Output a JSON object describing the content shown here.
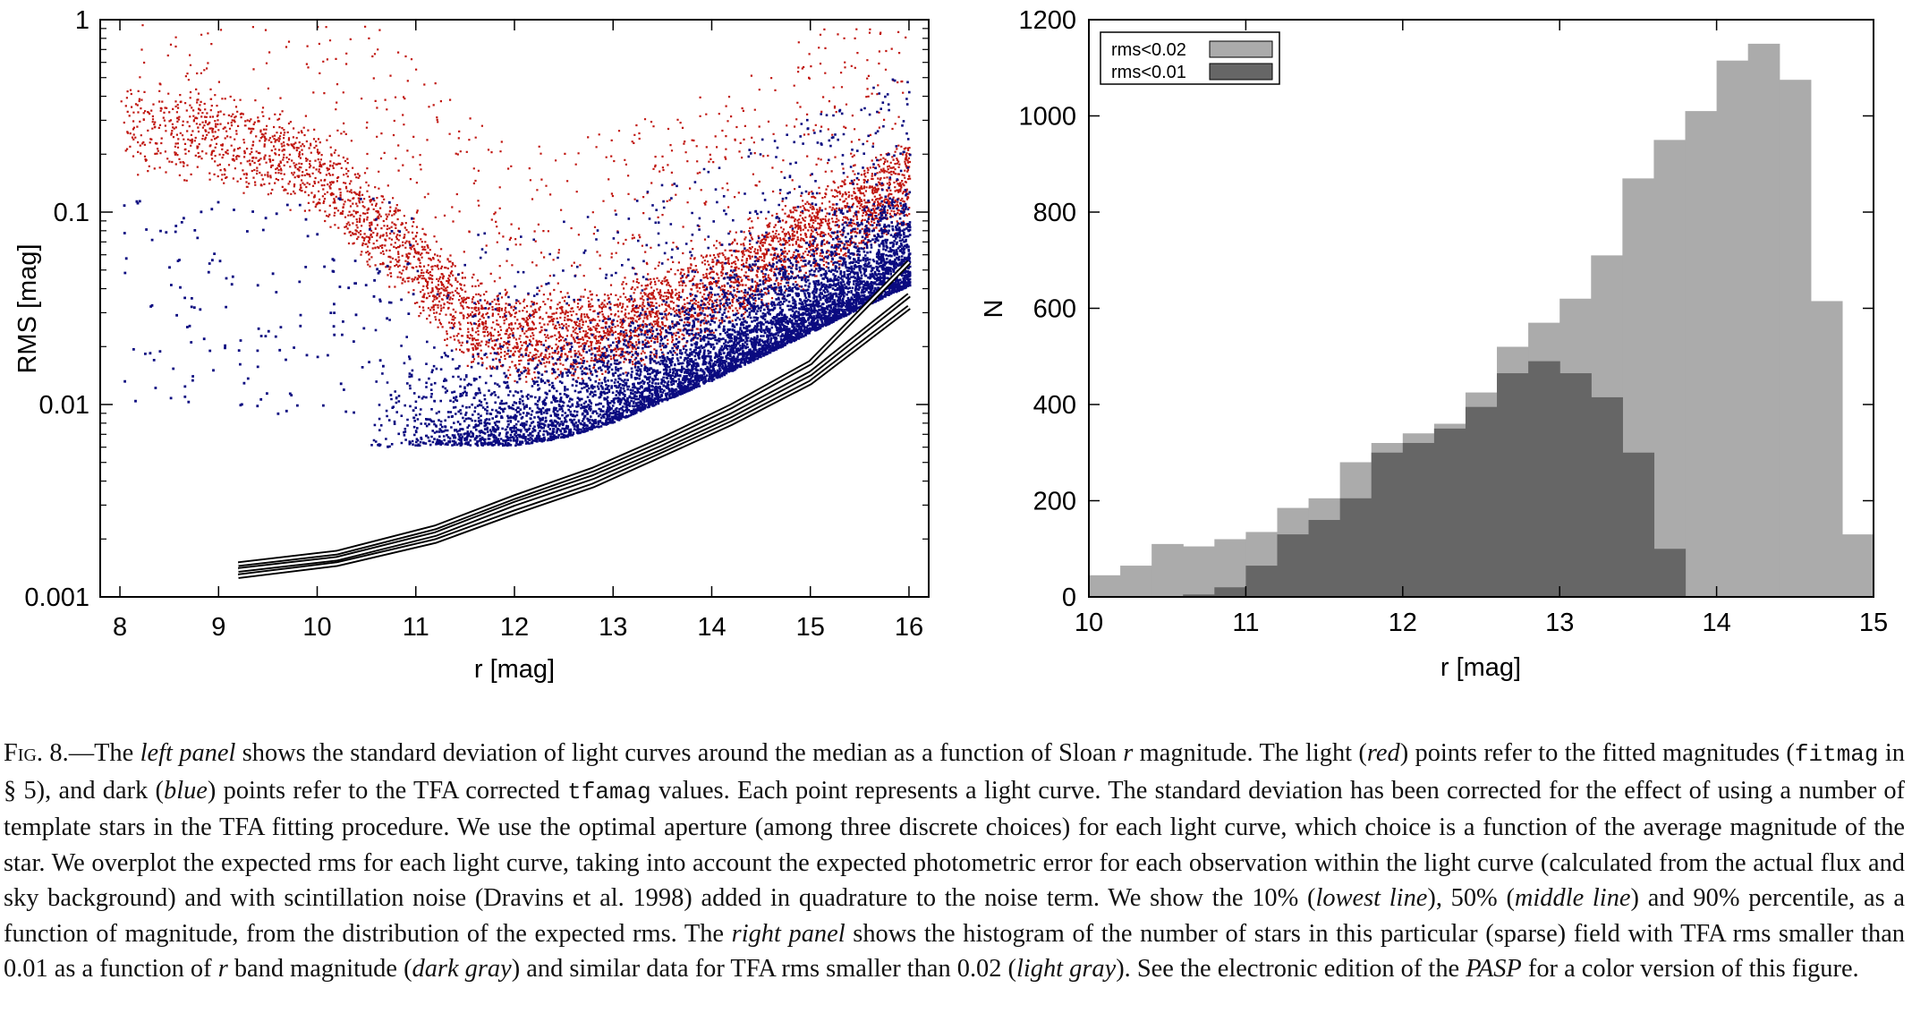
{
  "chart_data": [
    {
      "type": "scatter",
      "xlabel": "r [mag]",
      "ylabel": "RMS [mag]",
      "xlim": [
        7.8,
        16.2
      ],
      "ylim": [
        0.001,
        1
      ],
      "ylog": true,
      "xticks": [
        "8",
        "9",
        "10",
        "11",
        "12",
        "13",
        "14",
        "15",
        "16"
      ],
      "yticks": [
        "0.001",
        "0.01",
        "0.1",
        "1"
      ],
      "grid": false,
      "series": [
        {
          "label": "fitmag",
          "color": "#c0150f",
          "envelope_lower": [
            [
              8.0,
              0.16
            ],
            [
              9.0,
              0.14
            ],
            [
              10.0,
              0.09
            ],
            [
              11.0,
              0.03
            ],
            [
              11.5,
              0.016
            ],
            [
              12.0,
              0.0125
            ],
            [
              13.0,
              0.0135
            ],
            [
              14.0,
              0.022
            ],
            [
              15.0,
              0.042
            ],
            [
              16.0,
              0.085
            ]
          ]
        },
        {
          "label": "tfamag",
          "color": "#0a0a80",
          "envelope_lower": [
            [
              10.5,
              0.006
            ],
            [
              11.2,
              0.0062
            ],
            [
              12.0,
              0.0062
            ],
            [
              12.5,
              0.0068
            ],
            [
              13.0,
              0.0082
            ],
            [
              13.5,
              0.0105
            ],
            [
              14.0,
              0.0135
            ],
            [
              14.5,
              0.018
            ],
            [
              15.0,
              0.024
            ],
            [
              15.5,
              0.032
            ],
            [
              16.0,
              0.042
            ]
          ]
        }
      ],
      "percentile_lines": [
        {
          "name": "lowest line (10%)",
          "points": [
            [
              9.2,
              0.00128
            ],
            [
              10.2,
              0.00148
            ],
            [
              11.2,
              0.00195
            ],
            [
              12.0,
              0.00275
            ],
            [
              12.8,
              0.0038
            ],
            [
              13.5,
              0.0055
            ],
            [
              14.2,
              0.008
            ],
            [
              15.0,
              0.013
            ],
            [
              16.0,
              0.032
            ]
          ]
        },
        {
          "name": "middle line (50%)",
          "points": [
            [
              9.2,
              0.00138
            ],
            [
              10.2,
              0.00158
            ],
            [
              11.2,
              0.00212
            ],
            [
              12.0,
              0.00305
            ],
            [
              12.8,
              0.0042
            ],
            [
              13.5,
              0.006
            ],
            [
              14.2,
              0.0088
            ],
            [
              15.0,
              0.0145
            ],
            [
              16.0,
              0.037
            ]
          ]
        },
        {
          "name": "90% percentile",
          "points": [
            [
              9.2,
              0.00148
            ],
            [
              10.2,
              0.0017
            ],
            [
              11.2,
              0.0023
            ],
            [
              12.0,
              0.0033
            ],
            [
              12.8,
              0.0046
            ],
            [
              13.5,
              0.0066
            ],
            [
              14.2,
              0.0098
            ],
            [
              15.0,
              0.0165
            ],
            [
              16.0,
              0.055
            ]
          ]
        }
      ]
    },
    {
      "type": "bar",
      "xlabel": "r [mag]",
      "ylabel": "N",
      "xlim": [
        10,
        15
      ],
      "ylim": [
        0,
        1200
      ],
      "xticks": [
        "10",
        "11",
        "12",
        "13",
        "14",
        "15"
      ],
      "yticks": [
        "0",
        "200",
        "400",
        "600",
        "800",
        "1000",
        "1200"
      ],
      "bin_width": 0.2,
      "bin_starts": [
        10.0,
        10.2,
        10.4,
        10.6,
        10.8,
        11.0,
        11.2,
        11.4,
        11.6,
        11.8,
        12.0,
        12.2,
        12.4,
        12.6,
        12.8,
        13.0,
        13.2,
        13.4,
        13.6,
        13.8,
        14.0,
        14.2,
        14.4,
        14.6,
        14.8
      ],
      "legend_position": "top-left",
      "series": [
        {
          "name": "rms<0.02",
          "color": "#ababab",
          "values": [
            45,
            65,
            110,
            105,
            120,
            135,
            185,
            205,
            280,
            320,
            340,
            360,
            425,
            520,
            570,
            620,
            710,
            870,
            950,
            1010,
            1115,
            1150,
            1075,
            615,
            130
          ]
        },
        {
          "name": "rms<0.01",
          "color": "#666666",
          "values": [
            0,
            0,
            0,
            5,
            20,
            65,
            130,
            160,
            205,
            300,
            320,
            350,
            395,
            465,
            490,
            465,
            415,
            300,
            100,
            0,
            0,
            0,
            0,
            0,
            0
          ]
        }
      ]
    }
  ],
  "caption": {
    "fig": "Fig. 8.",
    "t1": "—The ",
    "i1": "left panel",
    "t2": " shows the standard deviation of light curves around the median as a function of Sloan ",
    "i2": "r",
    "t3": " magnitude. The light (",
    "i3": "red",
    "t4": ") points refer to the fitted magnitudes (",
    "c1": "fitmag",
    "t5": " in § 5), and dark (",
    "i4": "blue",
    "t6": ") points refer to the TFA corrected ",
    "c2": "tfamag",
    "t7": " values. Each point represents a light curve. The standard deviation has been corrected for the effect of using a number of template stars in the TFA fitting procedure. We use the optimal aperture (among three discrete choices) for each light curve, which choice is a function of the average magnitude of the star. We overplot the expected rms for each light curve, taking into account the expected photometric error for each observation within the light curve (calculated from the actual flux and sky background) and with scintillation noise (Dravins et al. 1998) added in quadrature to the noise term. We show the 10% (",
    "i5": "lowest line",
    "t8": "), 50% (",
    "i6": "middle line",
    "t9": ") and 90% percentile, as a function of magnitude, from the distribution of the expected rms. The ",
    "i7": "right panel",
    "t10": " shows the histogram of the number of stars in this particular (sparse) field with TFA rms smaller than 0.01 as a function of ",
    "i8": "r",
    "t11": " band magnitude (",
    "i9": "dark gray",
    "t12": ") and similar data for TFA rms smaller than 0.02 (",
    "i10": "light gray",
    "t13": "). See the electronic edition of the ",
    "i11": "PASP",
    "t14": " for a color version of this figure."
  }
}
